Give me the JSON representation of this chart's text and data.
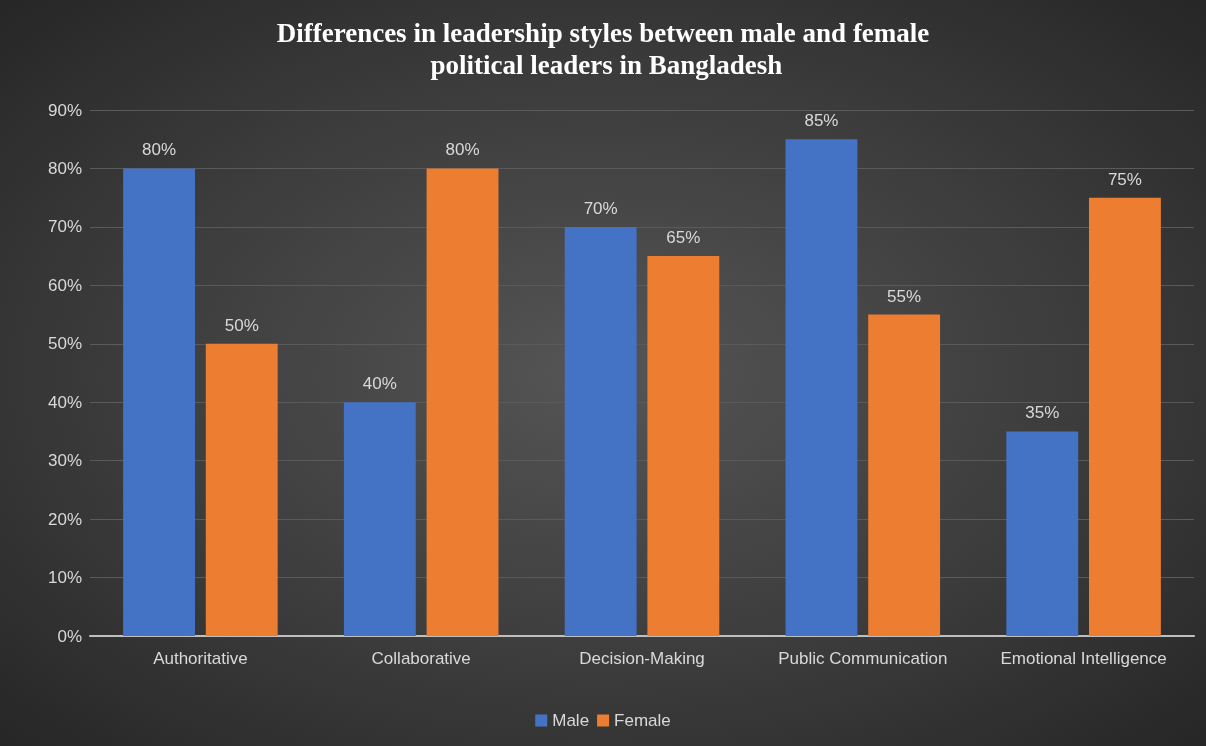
{
  "chart_data": {
    "type": "bar",
    "title": "Differences in leadership styles between male and female political leaders in Bangladesh",
    "categories": [
      "Authoritative",
      "Collaborative",
      "Decision-Making",
      "Public Communication",
      "Emotional Intelligence"
    ],
    "series": [
      {
        "name": "Male",
        "color": "#4472c4",
        "values": [
          80,
          40,
          70,
          85,
          35
        ],
        "value_labels": [
          "80%",
          "40%",
          "70%",
          "85%",
          "35%"
        ]
      },
      {
        "name": "Female",
        "color": "#ed7d31",
        "values": [
          50,
          80,
          65,
          55,
          75
        ],
        "value_labels": [
          "50%",
          "80%",
          "65%",
          "55%",
          "75%"
        ]
      }
    ],
    "ylim": [
      0,
      90
    ],
    "yticks": [
      {
        "value": 0,
        "label": "0%"
      },
      {
        "value": 10,
        "label": "10%"
      },
      {
        "value": 20,
        "label": "20%"
      },
      {
        "value": 30,
        "label": "30%"
      },
      {
        "value": 40,
        "label": "40%"
      },
      {
        "value": 50,
        "label": "50%"
      },
      {
        "value": 60,
        "label": "60%"
      },
      {
        "value": 70,
        "label": "70%"
      },
      {
        "value": 80,
        "label": "80%"
      },
      {
        "value": 90,
        "label": "90%"
      }
    ],
    "grid": "y",
    "legend": "bottom"
  }
}
